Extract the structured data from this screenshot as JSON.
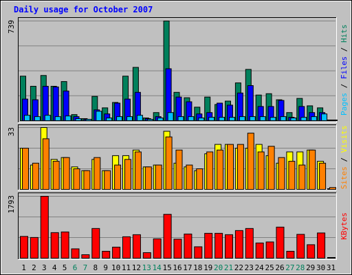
{
  "title": "Daily usage for October 2007",
  "colors": {
    "hits": "#00805c",
    "files": "#0000ff",
    "pages": "#00c0ff",
    "visits": "#ffff00",
    "sites": "#ff8000",
    "kbytes": "#ff0000",
    "weekend": "#00805c",
    "weekday": "#000000",
    "plot_bg": "#c0c0c0"
  },
  "chart_data": [
    {
      "type": "bar",
      "panel": "hits-files-pages",
      "ymax_label": "739",
      "ylim": [
        0,
        739
      ],
      "legend": [
        {
          "text": "Pages",
          "color": "#00c0ff"
        },
        {
          "text": " / ",
          "color": "#000000"
        },
        {
          "text": "Files",
          "color": "#0000ff"
        },
        {
          "text": " / ",
          "color": "#000000"
        },
        {
          "text": "Hits",
          "color": "#00805c"
        }
      ],
      "categories": [
        "1",
        "2",
        "3",
        "4",
        "5",
        "6",
        "7",
        "8",
        "9",
        "10",
        "11",
        "12",
        "13",
        "14",
        "15",
        "16",
        "17",
        "18",
        "19",
        "20",
        "21",
        "22",
        "23",
        "24",
        "25",
        "26",
        "27",
        "28",
        "29",
        "30",
        "31"
      ],
      "series": [
        {
          "name": "Hits",
          "color": "#00805c",
          "values": [
            330,
            255,
            335,
            255,
            290,
            45,
            15,
            180,
            95,
            135,
            330,
            395,
            20,
            60,
            739,
            210,
            170,
            100,
            175,
            120,
            145,
            280,
            380,
            190,
            200,
            155,
            60,
            165,
            110,
            95,
            0
          ]
        },
        {
          "name": "Files",
          "color": "#0000ff",
          "values": [
            160,
            155,
            255,
            250,
            220,
            30,
            10,
            80,
            50,
            130,
            160,
            210,
            15,
            30,
            385,
            175,
            140,
            50,
            60,
            130,
            115,
            205,
            260,
            105,
            105,
            150,
            25,
            105,
            60,
            60,
            0
          ]
        },
        {
          "name": "Pages",
          "color": "#00c0ff",
          "values": [
            40,
            30,
            40,
            30,
            35,
            15,
            10,
            70,
            20,
            30,
            30,
            40,
            10,
            20,
            60,
            30,
            30,
            20,
            25,
            25,
            25,
            30,
            30,
            30,
            25,
            30,
            20,
            25,
            30,
            50,
            0
          ]
        }
      ]
    },
    {
      "type": "bar",
      "panel": "visits-sites",
      "ymax_label": "33",
      "ylim": [
        0,
        33
      ],
      "legend": [
        {
          "text": "Sites",
          "color": "#ff8000"
        },
        {
          "text": " / ",
          "color": "#000000"
        },
        {
          "text": "Visits",
          "color": "#ffff00"
        }
      ],
      "categories": [
        "1",
        "2",
        "3",
        "4",
        "5",
        "6",
        "7",
        "8",
        "9",
        "10",
        "11",
        "12",
        "13",
        "14",
        "15",
        "16",
        "17",
        "18",
        "19",
        "20",
        "21",
        "22",
        "23",
        "24",
        "25",
        "26",
        "27",
        "28",
        "29",
        "30",
        "31"
      ],
      "series": [
        {
          "name": "Visits",
          "color": "#ffff00",
          "values": [
            22,
            13,
            33,
            16,
            17,
            12,
            10,
            16,
            10,
            18,
            18,
            21,
            12,
            13,
            31,
            14,
            12,
            10,
            19,
            24,
            24,
            22,
            22,
            24,
            18,
            14,
            20,
            20,
            21,
            15,
            0
          ]
        },
        {
          "name": "Sites",
          "color": "#ff8000",
          "values": [
            22,
            14,
            27,
            15,
            17,
            11,
            10,
            17,
            10,
            13,
            16,
            20,
            12,
            13,
            28,
            21,
            13,
            11,
            20,
            21,
            24,
            24,
            30,
            20,
            23,
            17,
            15,
            13,
            21,
            14,
            1
          ]
        }
      ]
    },
    {
      "type": "bar",
      "panel": "kbytes",
      "ymax_label": "1793",
      "ylim": [
        0,
        1793
      ],
      "legend": [
        {
          "text": "KBytes",
          "color": "#ff0000"
        }
      ],
      "categories": [
        "1",
        "2",
        "3",
        "4",
        "5",
        "6",
        "7",
        "8",
        "9",
        "10",
        "11",
        "12",
        "13",
        "14",
        "15",
        "16",
        "17",
        "18",
        "19",
        "20",
        "21",
        "22",
        "23",
        "24",
        "25",
        "26",
        "27",
        "28",
        "29",
        "30",
        "31"
      ],
      "series": [
        {
          "name": "KBytes",
          "color": "#ff0000",
          "values": [
            630,
            600,
            1793,
            740,
            760,
            270,
            100,
            860,
            200,
            320,
            620,
            680,
            160,
            560,
            1270,
            550,
            700,
            330,
            720,
            720,
            680,
            800,
            860,
            440,
            470,
            900,
            200,
            690,
            390,
            730,
            0
          ]
        }
      ]
    }
  ]
}
